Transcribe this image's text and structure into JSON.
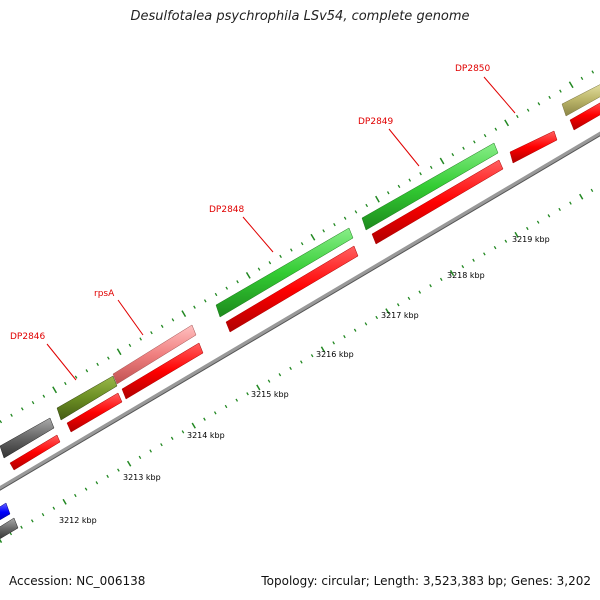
{
  "title": "Desulfotalea psychrophila LSv54, complete genome",
  "footer": {
    "accession": "Accession: NC_006138",
    "summary": "Topology: circular; Length: 3,523,383 bp; Genes: 3,202"
  },
  "scale_labels": [
    "3212 kbp",
    "3213 kbp",
    "3214 kbp",
    "3215 kbp",
    "3216 kbp",
    "3217 kbp",
    "3218 kbp",
    "3219 kbp"
  ],
  "gene_labels": [
    "DP2846",
    "rpsA",
    "DP2848",
    "DP2849",
    "DP2850"
  ],
  "colors": {
    "cds_red": "#ff0000",
    "gene_green": "#33cc33",
    "gene_olive": "#6b8e23",
    "gene_pink": "#f08080",
    "gene_gray": "#666666",
    "gene_khaki": "#bdb76b",
    "gene_blue": "#0000ff",
    "backbone": "#999999",
    "tick_green": "#228822"
  }
}
